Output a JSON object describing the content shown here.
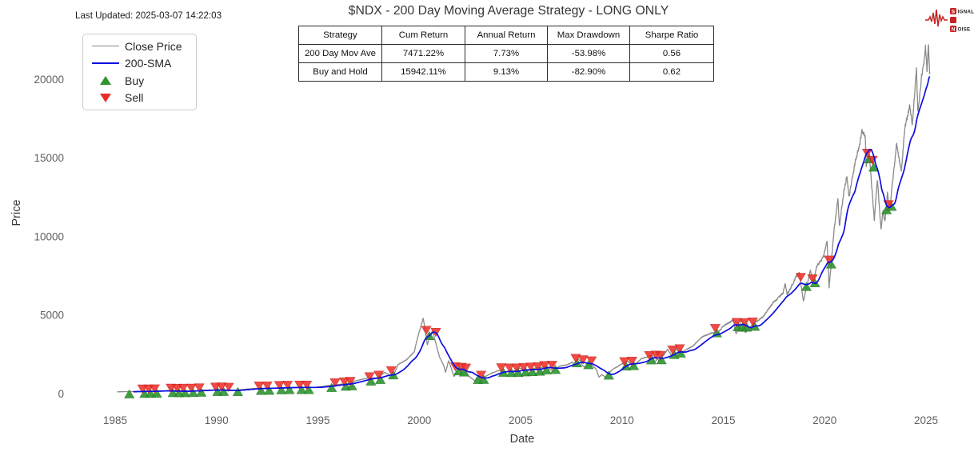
{
  "meta": {
    "last_updated": "Last Updated: 2025-03-07 14:22:03"
  },
  "header": {
    "title": "$NDX - 200 Day Moving Average Strategy - LONG ONLY"
  },
  "logo": {
    "accent_color": "#c32424",
    "line1_badge": "S",
    "line1_rest": "IGNAL",
    "line2_badge": "2",
    "line3_badge": "N",
    "line3_rest": "OISE"
  },
  "stats_table": {
    "columns": [
      "Strategy",
      "Cum Return",
      "Annual Return",
      "Max Drawdown",
      "Sharpe Ratio"
    ],
    "rows": [
      {
        "cells": [
          "200 Day Mov Ave",
          "7471.22%",
          "7.73%",
          "-53.98%",
          "0.56"
        ]
      },
      {
        "cells": [
          "Buy and Hold",
          "15942.11%",
          "9.13%",
          "-82.90%",
          "0.62"
        ]
      }
    ]
  },
  "legend": {
    "items": [
      {
        "label": "Close Price",
        "marker": "line",
        "color": "#8a8a8a"
      },
      {
        "label": "200-SMA",
        "marker": "line",
        "color": "#0d0de0"
      },
      {
        "label": "Buy",
        "marker": "triangle-up",
        "color": "#2e9430"
      },
      {
        "label": "Sell",
        "marker": "triangle-down",
        "color": "#ea2b2b"
      }
    ]
  },
  "chart_data": {
    "type": "line",
    "title": "$NDX - 200 Day Moving Average Strategy - LONG ONLY",
    "xlabel": "Date",
    "ylabel": "Price",
    "x_ticks": [
      1985,
      1990,
      1995,
      2000,
      2005,
      2010,
      2015,
      2020,
      2025
    ],
    "y_ticks": [
      0,
      5000,
      10000,
      15000,
      20000
    ],
    "xlim": [
      1983.8,
      2026.8
    ],
    "ylim": [
      -560,
      24630
    ],
    "grid": false,
    "legend_position": "upper-left",
    "colors": {
      "close": "#8a8a8a",
      "sma": "#0d0de0",
      "buy": "#2e9430",
      "sell": "#ed2a24",
      "tick_text": "#606060",
      "label_text": "#3a3a3a"
    },
    "series": [
      {
        "name": "Close Price",
        "anchors": [
          [
            1985.1,
            112
          ],
          [
            1985.5,
            122
          ],
          [
            1985.9,
            128
          ],
          [
            1986.2,
            142
          ],
          [
            1986.5,
            138
          ],
          [
            1987,
            163
          ],
          [
            1987.6,
            192
          ],
          [
            1987.8,
            128
          ],
          [
            1988.3,
            158
          ],
          [
            1988.8,
            168
          ],
          [
            1989.3,
            215
          ],
          [
            1989.8,
            232
          ],
          [
            1990.1,
            235
          ],
          [
            1990.55,
            175
          ],
          [
            1991,
            235
          ],
          [
            1991.9,
            330
          ],
          [
            1992.5,
            338
          ],
          [
            1993,
            362
          ],
          [
            1993.9,
            398
          ],
          [
            1994.4,
            382
          ],
          [
            1994.9,
            404
          ],
          [
            1995.5,
            505
          ],
          [
            1995.95,
            576
          ],
          [
            1996.4,
            625
          ],
          [
            1996.9,
            821
          ],
          [
            1997.5,
            1005
          ],
          [
            1997.9,
            990
          ],
          [
            1998.3,
            1350
          ],
          [
            1998.7,
            1063
          ],
          [
            1998.95,
            1836
          ],
          [
            1999.4,
            2180
          ],
          [
            1999.75,
            2650
          ],
          [
            1999.95,
            3707
          ],
          [
            2000.2,
            4816
          ],
          [
            2000.4,
            3100
          ],
          [
            2000.65,
            4050
          ],
          [
            2000.9,
            2800
          ],
          [
            2001,
            2341
          ],
          [
            2001.2,
            1800
          ],
          [
            2001.3,
            1350
          ],
          [
            2001.45,
            2100
          ],
          [
            2001.72,
            1088
          ],
          [
            2001.95,
            1620
          ],
          [
            2002.2,
            1500
          ],
          [
            2002.4,
            1150
          ],
          [
            2002.6,
            950
          ],
          [
            2002.75,
            804
          ],
          [
            2002.88,
            1100
          ],
          [
            2003,
            984
          ],
          [
            2003.2,
            1060
          ],
          [
            2003.55,
            1280
          ],
          [
            2003.9,
            1468
          ],
          [
            2004.2,
            1390
          ],
          [
            2004.6,
            1380
          ],
          [
            2004.95,
            1621
          ],
          [
            2005.3,
            1440
          ],
          [
            2005.7,
            1610
          ],
          [
            2005.95,
            1645
          ],
          [
            2006.3,
            1740
          ],
          [
            2006.55,
            1450
          ],
          [
            2006.95,
            1756
          ],
          [
            2007.3,
            1830
          ],
          [
            2007.55,
            2010
          ],
          [
            2007.65,
            1870
          ],
          [
            2007.8,
            2239
          ],
          [
            2007.95,
            2085
          ],
          [
            2008.05,
            1780
          ],
          [
            2008.2,
            1670
          ],
          [
            2008.4,
            1865
          ],
          [
            2008.55,
            1780
          ],
          [
            2008.73,
            1550
          ],
          [
            2008.87,
            1036
          ],
          [
            2009,
            1212
          ],
          [
            2009.2,
            1043
          ],
          [
            2009.5,
            1500
          ],
          [
            2009.95,
            1860
          ],
          [
            2010.3,
            2059
          ],
          [
            2010.55,
            1728
          ],
          [
            2010.95,
            2218
          ],
          [
            2011.3,
            2350
          ],
          [
            2011.5,
            2438
          ],
          [
            2011.62,
            2000
          ],
          [
            2011.75,
            2200
          ],
          [
            2011.85,
            2050
          ],
          [
            2011.95,
            2278
          ],
          [
            2012.25,
            2800
          ],
          [
            2012.45,
            2444
          ],
          [
            2012.7,
            2864
          ],
          [
            2012.85,
            2534
          ],
          [
            2013,
            2660
          ],
          [
            2013.5,
            3030
          ],
          [
            2013.95,
            3592
          ],
          [
            2014.5,
            3900
          ],
          [
            2014.65,
            3700
          ],
          [
            2014.95,
            4236
          ],
          [
            2015.2,
            4450
          ],
          [
            2015.5,
            4694
          ],
          [
            2015.63,
            3787
          ],
          [
            2015.9,
            4740
          ],
          [
            2016.1,
            3888
          ],
          [
            2016.5,
            4480
          ],
          [
            2016.95,
            4863
          ],
          [
            2017.5,
            5850
          ],
          [
            2017.95,
            6396
          ],
          [
            2018.05,
            7022
          ],
          [
            2018.15,
            6300
          ],
          [
            2018.45,
            7030
          ],
          [
            2018.6,
            7450
          ],
          [
            2018.75,
            7700
          ],
          [
            2018.95,
            5895
          ],
          [
            2019.3,
            7850
          ],
          [
            2019.42,
            7050
          ],
          [
            2019.6,
            8050
          ],
          [
            2019.95,
            8733
          ],
          [
            2020.12,
            9736
          ],
          [
            2020.22,
            6771
          ],
          [
            2020.45,
            10200
          ],
          [
            2020.65,
            12420
          ],
          [
            2020.73,
            10677
          ],
          [
            2020.95,
            12888
          ],
          [
            2021.1,
            13807
          ],
          [
            2021.2,
            12500
          ],
          [
            2021.5,
            14700
          ],
          [
            2021.7,
            15700
          ],
          [
            2021.85,
            16764
          ],
          [
            2022,
            16400
          ],
          [
            2022.05,
            14500
          ],
          [
            2022.2,
            15239
          ],
          [
            2022.45,
            11037
          ],
          [
            2022.6,
            13667
          ],
          [
            2022.78,
            10440
          ],
          [
            2022.88,
            11600
          ],
          [
            2022.97,
            10939
          ],
          [
            2023.1,
            12700
          ],
          [
            2023.2,
            11695
          ],
          [
            2023.55,
            15841
          ],
          [
            2023.78,
            14100
          ],
          [
            2023.95,
            16825
          ],
          [
            2024.2,
            18300
          ],
          [
            2024.32,
            17037
          ],
          [
            2024.53,
            20691
          ],
          [
            2024.6,
            17895
          ],
          [
            2024.78,
            20100
          ],
          [
            2024.9,
            21100
          ],
          [
            2024.97,
            22133
          ],
          [
            2025.05,
            20538
          ],
          [
            2025.12,
            22175
          ],
          [
            2025.18,
            20201
          ]
        ]
      },
      {
        "name": "200-SMA",
        "derived": "trailing 200-day simple moving average of Close Price"
      }
    ],
    "buy_signals": [
      [
        1985.7,
        122
      ],
      [
        1986.45,
        154
      ],
      [
        1986.75,
        157
      ],
      [
        1987.05,
        163
      ],
      [
        1987.85,
        203
      ],
      [
        1988.15,
        196
      ],
      [
        1988.45,
        200
      ],
      [
        1988.85,
        208
      ],
      [
        1989.25,
        228
      ],
      [
        1990.05,
        276
      ],
      [
        1990.35,
        280
      ],
      [
        1991.05,
        270
      ],
      [
        1992.2,
        344
      ],
      [
        1992.6,
        349
      ],
      [
        1993.2,
        380
      ],
      [
        1993.6,
        390
      ],
      [
        1994.2,
        399
      ],
      [
        1994.55,
        397
      ],
      [
        1995.68,
        528
      ],
      [
        1996.38,
        610
      ],
      [
        1996.68,
        638
      ],
      [
        1997.62,
        938
      ],
      [
        1998.08,
        1040
      ],
      [
        1998.72,
        1330
      ],
      [
        2000.5,
        3830
      ],
      [
        2001.95,
        1590
      ],
      [
        2002.22,
        1510
      ],
      [
        2002.9,
        1040
      ],
      [
        2003.18,
        1045
      ],
      [
        2004.15,
        1498
      ],
      [
        2004.55,
        1483
      ],
      [
        2004.88,
        1488
      ],
      [
        2005.25,
        1522
      ],
      [
        2005.58,
        1542
      ],
      [
        2005.95,
        1562
      ],
      [
        2006.28,
        1648
      ],
      [
        2006.72,
        1672
      ],
      [
        2007.78,
        2095
      ],
      [
        2008.35,
        1980
      ],
      [
        2009.35,
        1320
      ],
      [
        2010.2,
        1893
      ],
      [
        2010.58,
        1921
      ],
      [
        2011.45,
        2283
      ],
      [
        2011.95,
        2288
      ],
      [
        2012.58,
        2628
      ],
      [
        2012.9,
        2718
      ],
      [
        2014.68,
        4003
      ],
      [
        2015.72,
        4390
      ],
      [
        2015.95,
        4360
      ],
      [
        2016.15,
        4368
      ],
      [
        2016.55,
        4420
      ],
      [
        2019.1,
        6950
      ],
      [
        2019.52,
        7190
      ],
      [
        2020.32,
        8380
      ],
      [
        2022.2,
        15080
      ],
      [
        2022.42,
        14550
      ],
      [
        2023.05,
        11830
      ],
      [
        2023.3,
        12050
      ]
    ],
    "sell_signals": [
      [
        1986.35,
        152
      ],
      [
        1986.65,
        155
      ],
      [
        1986.95,
        160
      ],
      [
        1987.75,
        205
      ],
      [
        1988.05,
        195
      ],
      [
        1988.35,
        198
      ],
      [
        1988.75,
        205
      ],
      [
        1989.15,
        225
      ],
      [
        1989.95,
        275
      ],
      [
        1990.25,
        278
      ],
      [
        1990.6,
        262
      ],
      [
        1992.1,
        342
      ],
      [
        1992.5,
        347
      ],
      [
        1993.1,
        378
      ],
      [
        1993.5,
        388
      ],
      [
        1994.1,
        398
      ],
      [
        1994.45,
        396
      ],
      [
        1995.85,
        545
      ],
      [
        1996.3,
        608
      ],
      [
        1996.6,
        636
      ],
      [
        1997.55,
        930
      ],
      [
        1998,
        1030
      ],
      [
        1998.62,
        1320
      ],
      [
        2000.35,
        3880
      ],
      [
        2000.82,
        3750
      ],
      [
        2001.78,
        1560
      ],
      [
        2002.08,
        1530
      ],
      [
        2002.3,
        1480
      ],
      [
        2003.05,
        1030
      ],
      [
        2004.05,
        1500
      ],
      [
        2004.45,
        1485
      ],
      [
        2004.8,
        1490
      ],
      [
        2005.15,
        1520
      ],
      [
        2005.5,
        1545
      ],
      [
        2005.85,
        1560
      ],
      [
        2006.18,
        1645
      ],
      [
        2006.55,
        1660
      ],
      [
        2007.72,
        2100
      ],
      [
        2008.08,
        2010
      ],
      [
        2008.5,
        1940
      ],
      [
        2010.12,
        1890
      ],
      [
        2010.5,
        1918
      ],
      [
        2011.35,
        2280
      ],
      [
        2011.68,
        2300
      ],
      [
        2011.9,
        2285
      ],
      [
        2012.5,
        2625
      ],
      [
        2012.85,
        2715
      ],
      [
        2014.6,
        4000
      ],
      [
        2015.66,
        4380
      ],
      [
        2016.05,
        4370
      ],
      [
        2016.45,
        4415
      ],
      [
        2018.82,
        7250
      ],
      [
        2019.4,
        7160
      ],
      [
        2020.22,
        8350
      ],
      [
        2022.1,
        15150
      ],
      [
        2022.36,
        14700
      ],
      [
        2023.15,
        11880
      ]
    ]
  }
}
